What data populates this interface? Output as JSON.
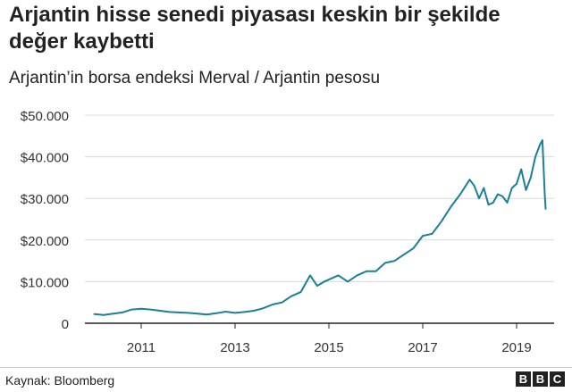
{
  "title": "Arjantin hisse senedi piyasası keskin bir şekilde değer kaybetti",
  "subtitle": "Arjantin’in borsa endeksi Merval / Arjantin pesosu",
  "source": "Kaynak: Bloomberg",
  "logo": [
    "B",
    "B",
    "C"
  ],
  "colors": {
    "line": "#1a7f99",
    "grid": "#d9d9d9",
    "axis": "#222222",
    "text": "#333333"
  },
  "chart_data": {
    "type": "line",
    "title": "Arjantin hisse senedi piyasası keskin bir şekilde değer kaybetti",
    "subtitle": "Arjantin’in borsa endeksi Merval / Arjantin pesosu",
    "xlabel": "",
    "ylabel": "",
    "xlim": [
      2009.8,
      2019.8
    ],
    "ylim": [
      0,
      50000
    ],
    "x_ticks": [
      2011,
      2013,
      2015,
      2017,
      2019
    ],
    "x_tick_labels": [
      "2011",
      "2013",
      "2015",
      "2017",
      "2019"
    ],
    "y_ticks": [
      0,
      10000,
      20000,
      30000,
      40000,
      50000
    ],
    "y_tick_labels": [
      "0",
      "$10.000",
      "$20.000",
      "$30.000",
      "$40.000",
      "$50.000"
    ],
    "grid": true,
    "series": [
      {
        "name": "",
        "color": "#1a7f99",
        "x": [
          2010.0,
          2010.2,
          2010.4,
          2010.6,
          2010.8,
          2011.0,
          2011.2,
          2011.4,
          2011.6,
          2011.8,
          2012.0,
          2012.2,
          2012.4,
          2012.6,
          2012.8,
          2013.0,
          2013.2,
          2013.4,
          2013.6,
          2013.8,
          2014.0,
          2014.2,
          2014.4,
          2014.6,
          2014.75,
          2014.9,
          2015.0,
          2015.2,
          2015.4,
          2015.6,
          2015.8,
          2016.0,
          2016.2,
          2016.4,
          2016.6,
          2016.8,
          2017.0,
          2017.2,
          2017.4,
          2017.6,
          2017.8,
          2018.0,
          2018.1,
          2018.2,
          2018.3,
          2018.4,
          2018.5,
          2018.6,
          2018.7,
          2018.8,
          2018.9,
          2019.0,
          2019.1,
          2019.2,
          2019.3,
          2019.4,
          2019.5,
          2019.55,
          2019.6,
          2019.62
        ],
        "values": [
          2200,
          2000,
          2300,
          2600,
          3300,
          3500,
          3300,
          3000,
          2700,
          2600,
          2500,
          2300,
          2100,
          2400,
          2800,
          2500,
          2700,
          3000,
          3600,
          4500,
          5000,
          6500,
          7500,
          11500,
          9000,
          10000,
          10500,
          11500,
          10000,
          11500,
          12500,
          12500,
          14500,
          15000,
          16500,
          18000,
          21000,
          21500,
          24500,
          28000,
          31000,
          34500,
          33000,
          30000,
          32500,
          28500,
          29000,
          31000,
          30500,
          29000,
          32500,
          33500,
          37000,
          32000,
          35000,
          40000,
          43000,
          44000,
          31000,
          27500
        ]
      }
    ]
  }
}
